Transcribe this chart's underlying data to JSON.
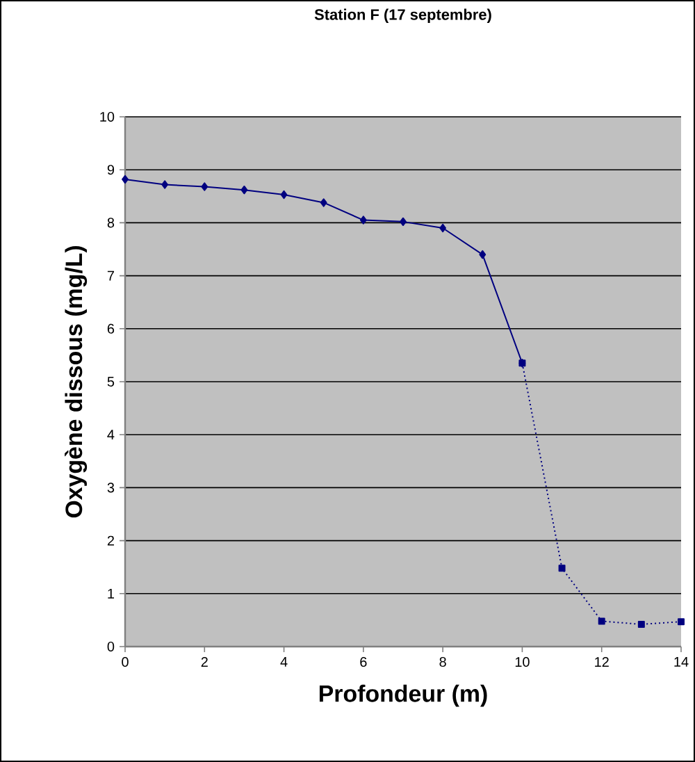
{
  "chart_data": {
    "type": "line",
    "title": "Station F (17 septembre)",
    "xlabel": "Profondeur (m)",
    "ylabel": "Oxygène dissous (mg/L)",
    "xlim": [
      0,
      14
    ],
    "xticks": [
      0,
      2,
      4,
      6,
      8,
      10,
      12,
      14
    ],
    "ylim": [
      0,
      10
    ],
    "yticks": [
      0,
      1,
      2,
      3,
      4,
      5,
      6,
      7,
      8,
      9,
      10
    ],
    "grid": "y",
    "series": [
      {
        "color": "#000080",
        "marker": "diamond",
        "line_style": "solid",
        "x": [
          0,
          1,
          2,
          3,
          4,
          5,
          6,
          7,
          8,
          9,
          10
        ],
        "values": [
          8.82,
          8.72,
          8.68,
          8.62,
          8.53,
          8.38,
          8.05,
          8.02,
          7.9,
          7.4,
          5.35
        ]
      },
      {
        "color": "#000080",
        "marker": "square",
        "line_style": "dotted",
        "x": [
          10,
          11,
          12,
          13,
          14
        ],
        "values": [
          5.35,
          1.48,
          0.48,
          0.42,
          0.47
        ]
      }
    ]
  }
}
